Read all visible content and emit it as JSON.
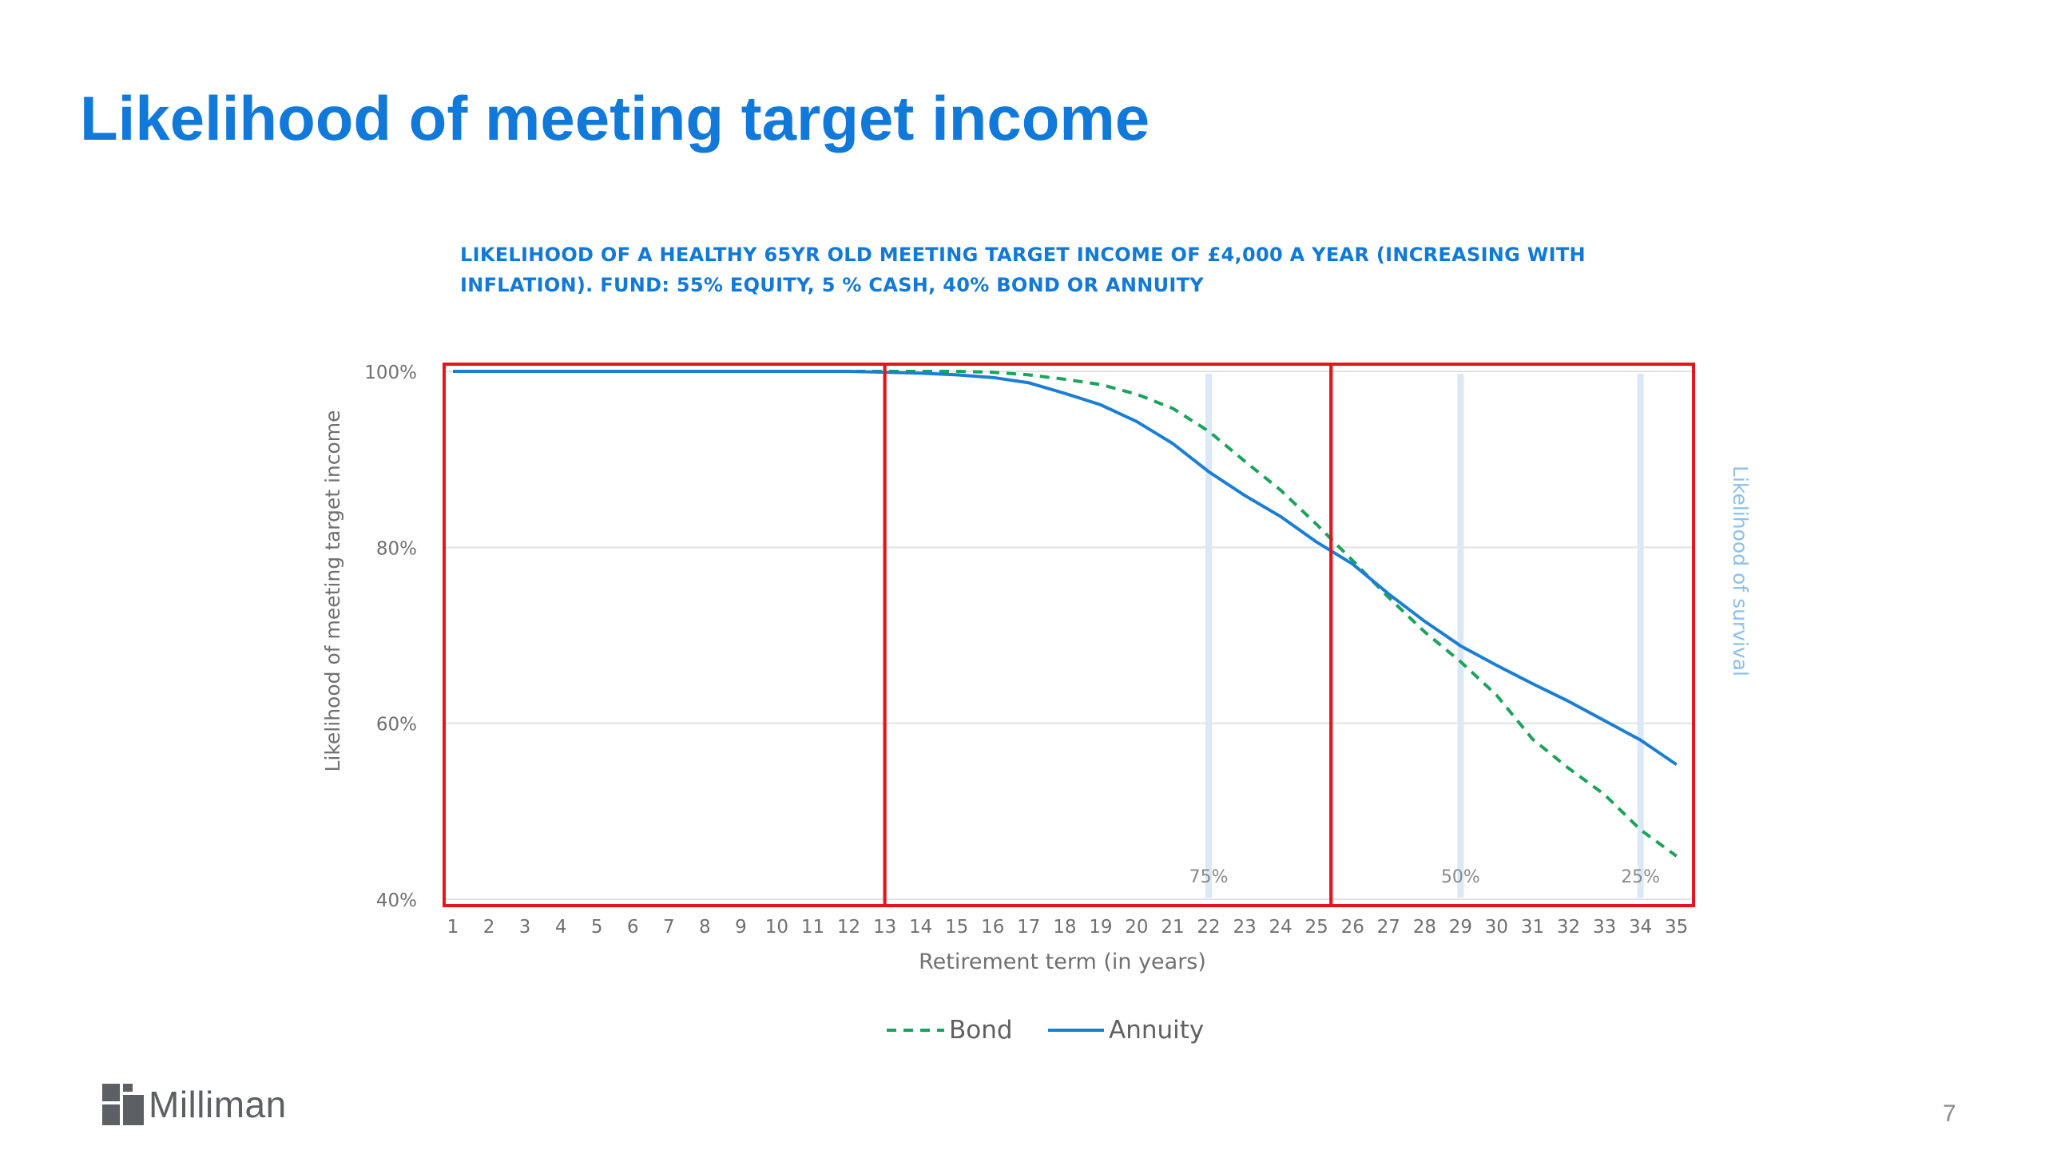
{
  "slide": {
    "title": "Likelihood of meeting target income",
    "page_number": "7",
    "logo_text": "Milliman"
  },
  "chart_data": {
    "type": "line",
    "title_lines": [
      "LIKELIHOOD OF A HEALTHY 65YR OLD MEETING TARGET INCOME OF £4,000 A YEAR (INCREASING WITH",
      "INFLATION). FUND: 55% EQUITY, 5 % CASH, 40% BOND OR ANNUITY"
    ],
    "xlabel": "Retirement term (in years)",
    "ylabel": "Likelihood of meeting target income",
    "secondary_ylabel": "Likelihood of survival",
    "x": [
      1,
      2,
      3,
      4,
      5,
      6,
      7,
      8,
      9,
      10,
      11,
      12,
      13,
      14,
      15,
      16,
      17,
      18,
      19,
      20,
      21,
      22,
      23,
      24,
      25,
      26,
      27,
      28,
      29,
      30,
      31,
      32,
      33,
      34,
      35
    ],
    "x_tick_labels": [
      "1",
      "2",
      "3",
      "4",
      "5",
      "6",
      "7",
      "8",
      "9",
      "10",
      "11",
      "12",
      "13",
      "14",
      "15",
      "16",
      "17",
      "18",
      "19",
      "20",
      "21",
      "22",
      "23",
      "24",
      "25",
      "26",
      "27",
      "28",
      "29",
      "30",
      "31",
      "32",
      "33",
      "34",
      "35"
    ],
    "ylim": [
      40,
      100
    ],
    "y_ticks": [
      40,
      60,
      80,
      100
    ],
    "y_tick_labels": [
      "40%",
      "60%",
      "80%",
      "100%"
    ],
    "grid": true,
    "legend_position": "bottom",
    "series": [
      {
        "name": "Bond",
        "style": "dashed",
        "color": "#1aa35a",
        "values": [
          100,
          100,
          100,
          100,
          100,
          100,
          100,
          100,
          100,
          100,
          100,
          100,
          100,
          100,
          100,
          99.9,
          99.6,
          99.1,
          98.5,
          97.4,
          95.8,
          93.2,
          89.8,
          86.5,
          82.6,
          78.5,
          74.3,
          70.4,
          67,
          63.2,
          58.2,
          54.9,
          51.9,
          47.9,
          44.9
        ]
      },
      {
        "name": "Annuity",
        "style": "solid",
        "color": "#1a7fd4",
        "values": [
          100,
          100,
          100,
          100,
          100,
          100,
          100,
          100,
          100,
          100,
          100,
          100,
          99.9,
          99.8,
          99.6,
          99.3,
          98.7,
          97.5,
          96.2,
          94.3,
          91.8,
          88.6,
          85.9,
          83.5,
          80.6,
          78.1,
          74.7,
          71.6,
          68.8,
          66.6,
          64.5,
          62.5,
          60.3,
          58.1,
          55.3
        ]
      }
    ],
    "survival_markers": [
      {
        "label": "75%",
        "x": 22
      },
      {
        "label": "50%",
        "x": 29
      },
      {
        "label": "25%",
        "x": 34
      }
    ],
    "highlight_boxes": [
      {
        "from_x": 1,
        "to_x": 13
      },
      {
        "from_x": 13,
        "to_x": 25.4
      },
      {
        "from_x": 25.4,
        "to_x": 35
      }
    ],
    "colors": {
      "highlight": "#e8141b",
      "survival_band": "#dce8f5",
      "grid": "#e2e2e2",
      "axis_text": "#707070",
      "secondary_label": "#8cc0ea"
    }
  }
}
